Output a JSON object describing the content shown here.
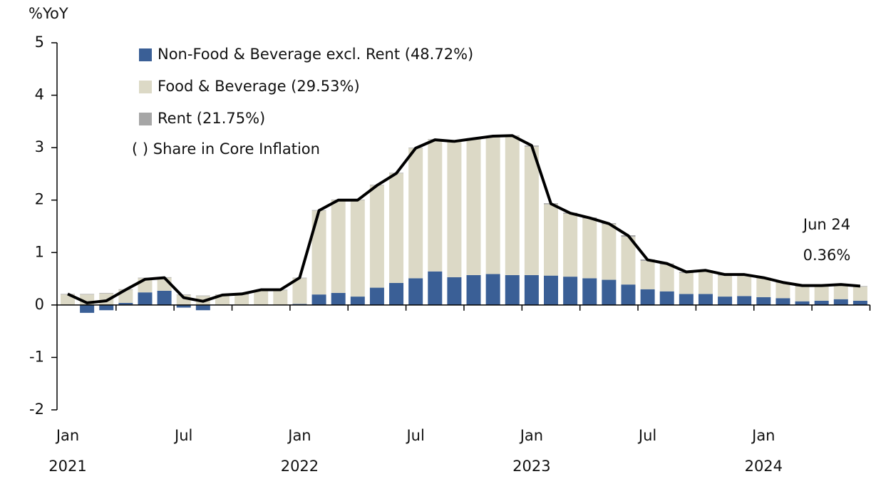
{
  "chart_data": {
    "type": "bar",
    "stacked": true,
    "y_label": "%YoY",
    "categories": [
      "Jan",
      null,
      null,
      null,
      null,
      null,
      "Jul",
      null,
      null,
      null,
      null,
      null,
      "Jan",
      null,
      null,
      null,
      null,
      null,
      "Jul",
      null,
      null,
      null,
      null,
      null,
      "Jan",
      null,
      null,
      null,
      null,
      null,
      "Jul",
      null,
      null,
      null,
      null,
      null,
      "Jan",
      null,
      null,
      null,
      null,
      null
    ],
    "years": [
      "2021",
      "2022",
      "2023",
      "2024"
    ],
    "series": [
      {
        "name": "Non-Food & Beverage excl. Rent (48.72%)",
        "color": "#3a5f96",
        "values": [
          0.0,
          -0.15,
          -0.1,
          0.04,
          0.24,
          0.27,
          -0.05,
          -0.1,
          0.0,
          0.0,
          0.0,
          0.0,
          0.02,
          0.2,
          0.23,
          0.16,
          0.33,
          0.42,
          0.51,
          0.64,
          0.53,
          0.57,
          0.59,
          0.57,
          0.57,
          0.56,
          0.54,
          0.51,
          0.48,
          0.39,
          0.3,
          0.26,
          0.21,
          0.21,
          0.16,
          0.17,
          0.15,
          0.13,
          0.07,
          0.08,
          0.11,
          0.08
        ]
      },
      {
        "name": "Food & Beverage (29.53%)",
        "color": "#dcd9c6",
        "values": [
          0.2,
          0.2,
          0.22,
          0.25,
          0.27,
          0.25,
          0.19,
          0.17,
          0.19,
          0.2,
          0.28,
          0.28,
          0.49,
          1.6,
          1.77,
          1.84,
          1.95,
          2.09,
          2.48,
          2.51,
          2.58,
          2.6,
          2.62,
          2.65,
          2.45,
          1.36,
          1.2,
          1.14,
          1.06,
          0.91,
          0.54,
          0.51,
          0.4,
          0.43,
          0.4,
          0.39,
          0.36,
          0.29,
          0.28,
          0.27,
          0.26,
          0.27
        ]
      },
      {
        "name": "Rent (21.75%)",
        "color": "#a6a6a6",
        "values": [
          0.01,
          0.01,
          0.01,
          0.01,
          0.01,
          0.01,
          0.01,
          0.01,
          0.01,
          0.01,
          0.01,
          0.01,
          0.01,
          0.01,
          0.01,
          0.01,
          0.01,
          0.01,
          0.01,
          0.01,
          0.01,
          0.01,
          0.01,
          0.01,
          0.02,
          0.02,
          0.02,
          0.02,
          0.02,
          0.03,
          0.03,
          0.02,
          0.02,
          0.02,
          0.02,
          0.02,
          0.01,
          0.01,
          0.02,
          0.02,
          0.02,
          0.01
        ]
      }
    ],
    "line": {
      "color": "#000000",
      "values": [
        0.21,
        0.04,
        0.08,
        0.29,
        0.49,
        0.52,
        0.14,
        0.07,
        0.19,
        0.21,
        0.29,
        0.29,
        0.52,
        1.8,
        2.0,
        2.0,
        2.28,
        2.51,
        2.99,
        3.15,
        3.12,
        3.17,
        3.22,
        3.23,
        3.04,
        1.93,
        1.75,
        1.66,
        1.55,
        1.32,
        0.86,
        0.79,
        0.63,
        0.66,
        0.58,
        0.58,
        0.52,
        0.43,
        0.37,
        0.37,
        0.39,
        0.36
      ]
    },
    "legend_note": "( ) Share in Core Inflation",
    "annotations": [
      "Jun 24",
      "0.36%"
    ],
    "ylim": [
      -2,
      5
    ],
    "yticks": [
      -2,
      -1,
      0,
      1,
      2,
      3,
      4,
      5
    ]
  }
}
